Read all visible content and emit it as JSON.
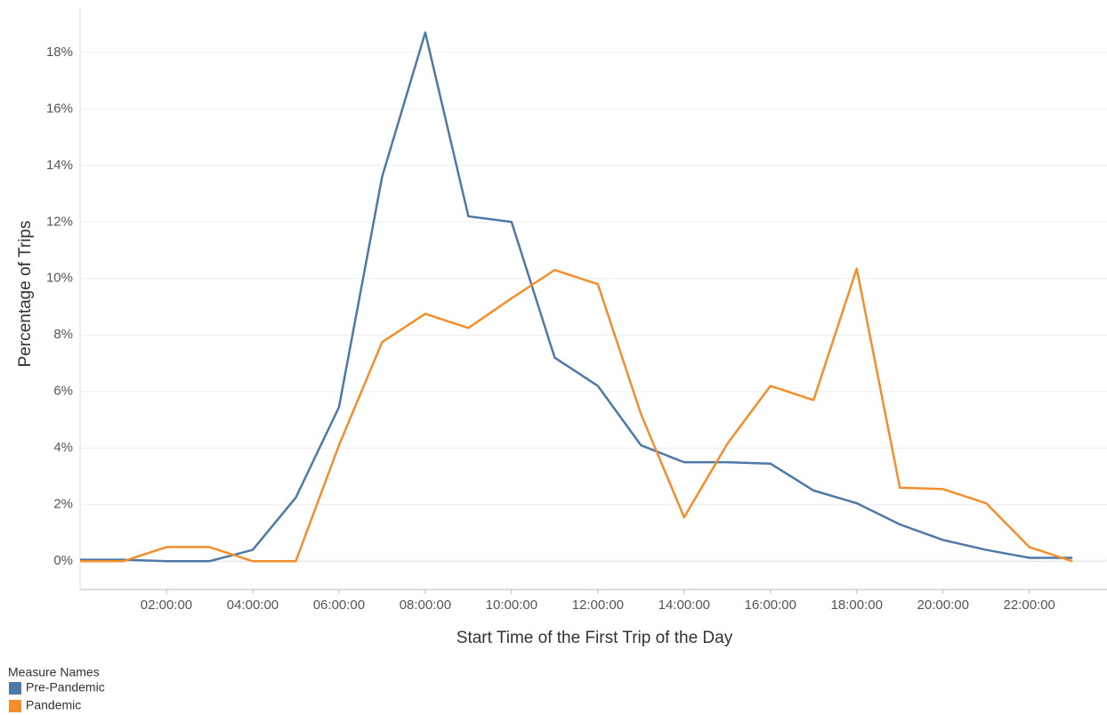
{
  "chart_data": {
    "type": "line",
    "x_label": "Start Time of the First Trip of the Day",
    "y_label": "Percentage of Trips",
    "legend_title": "Measure Names",
    "x": [
      0,
      1,
      2,
      3,
      4,
      5,
      6,
      7,
      8,
      9,
      10,
      11,
      12,
      13,
      14,
      15,
      16,
      17,
      18,
      19,
      20,
      21,
      22,
      23
    ],
    "series": [
      {
        "name": "Pre-Pandemic",
        "color": "#4e79a7",
        "values": [
          0.05,
          0.05,
          0.0,
          0.0,
          0.4,
          2.25,
          5.45,
          13.6,
          18.7,
          12.2,
          12.0,
          7.2,
          6.2,
          4.1,
          3.5,
          3.5,
          3.45,
          2.5,
          2.05,
          1.3,
          0.75,
          0.4,
          0.12,
          0.12
        ]
      },
      {
        "name": "Pandemic",
        "color": "#f28e2b",
        "values": [
          0,
          0,
          0.5,
          0.5,
          0,
          0,
          4.1,
          7.75,
          8.75,
          8.25,
          9.3,
          10.3,
          9.8,
          5.2,
          1.55,
          4.15,
          6.2,
          5.7,
          10.35,
          2.6,
          2.55,
          2.05,
          0.5,
          0
        ]
      }
    ],
    "xlim": [
      0,
      23.8
    ],
    "ylim": [
      -1,
      19.6
    ],
    "xticks": [
      {
        "value": 2,
        "label": "02:00:00"
      },
      {
        "value": 4,
        "label": "04:00:00"
      },
      {
        "value": 6,
        "label": "06:00:00"
      },
      {
        "value": 8,
        "label": "08:00:00"
      },
      {
        "value": 10,
        "label": "10:00:00"
      },
      {
        "value": 12,
        "label": "12:00:00"
      },
      {
        "value": 14,
        "label": "14:00:00"
      },
      {
        "value": 16,
        "label": "16:00:00"
      },
      {
        "value": 18,
        "label": "18:00:00"
      },
      {
        "value": 20,
        "label": "20:00:00"
      },
      {
        "value": 22,
        "label": "22:00:00"
      }
    ],
    "yticks": [
      {
        "value": 0,
        "label": "0%"
      },
      {
        "value": 2,
        "label": "2%"
      },
      {
        "value": 4,
        "label": "4%"
      },
      {
        "value": 6,
        "label": "6%"
      },
      {
        "value": 8,
        "label": "8%"
      },
      {
        "value": 10,
        "label": "10%"
      },
      {
        "value": 12,
        "label": "12%"
      },
      {
        "value": 14,
        "label": "14%"
      },
      {
        "value": 16,
        "label": "16%"
      },
      {
        "value": 18,
        "label": "18%"
      }
    ],
    "grid": true
  }
}
